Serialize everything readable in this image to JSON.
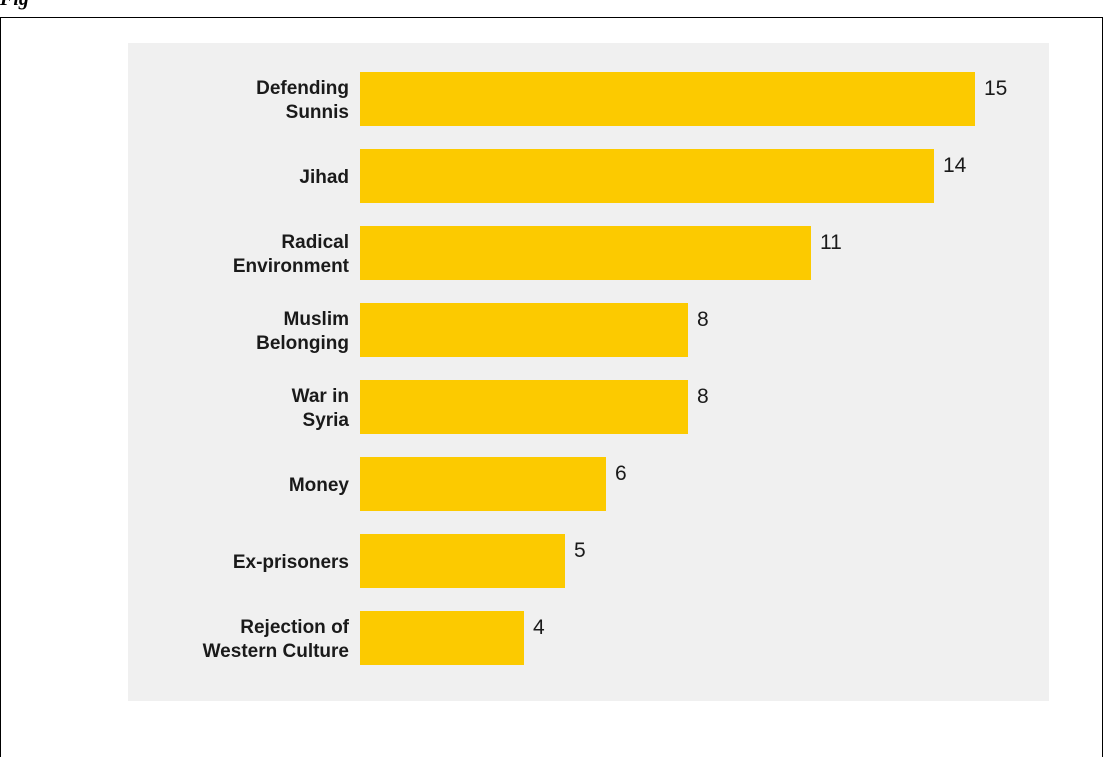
{
  "caption": {
    "text": "Fig"
  },
  "chart_data": {
    "type": "bar",
    "orientation": "horizontal",
    "title": "",
    "xlabel": "",
    "ylabel": "",
    "categories": [
      [
        "Defending",
        "Sunnis"
      ],
      [
        "Jihad"
      ],
      [
        "Radical",
        "Environment"
      ],
      [
        "Muslim",
        "Belonging"
      ],
      [
        "War in",
        "Syria"
      ],
      [
        "Money"
      ],
      [
        "Ex-prisoners"
      ],
      [
        "Rejection of",
        "Western Culture"
      ]
    ],
    "values": [
      15,
      14,
      11,
      8,
      8,
      6,
      5,
      4
    ],
    "xlim": [
      0,
      15
    ],
    "grid": false,
    "legend": "none",
    "colors": {
      "bar": "#fcca00",
      "panel": "#f0f0f0",
      "text": "#1a1a1a"
    }
  }
}
